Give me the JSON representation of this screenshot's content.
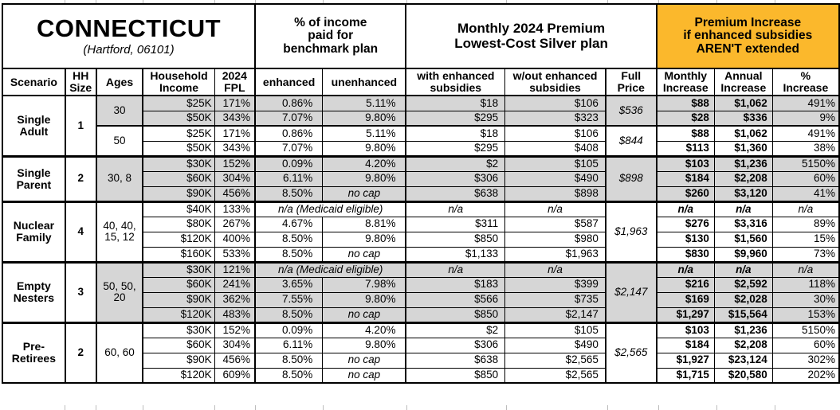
{
  "title": {
    "state": "CONNECTICUT",
    "subtitle": "(Hartford, 06101)"
  },
  "group_headers": {
    "benchmark": "% of income\npaid for\nbenchmark plan",
    "premium": "Monthly 2024 Premium\nLowest-Cost Silver plan",
    "increase": "Premium Increase\nif enhanced subsidies\nAREN'T extended"
  },
  "columns": {
    "scenario": "Scenario",
    "hh_size": "HH\nSize",
    "ages": "Ages",
    "income": "Household\nIncome",
    "fpl": "2024\nFPL",
    "enhanced": "enhanced",
    "unenhanced": "unenhanced",
    "with_sub": "with enhanced\nsubsidies",
    "wout_sub": "w/out enhanced\nsubsidies",
    "full_price": "Full\nPrice",
    "monthly_inc": "Monthly\nIncrease",
    "annual_inc": "Annual\nIncrease",
    "pct_inc": "%\nIncrease"
  },
  "colors": {
    "accent": "#FBB82C",
    "row_shade": "#D6D6D6"
  },
  "na_text": "n/a",
  "medicaid_text": "n/a (Medicaid eligible)",
  "no_cap_text": "no cap",
  "scenarios": [
    {
      "name": "Single\nAdult",
      "hh_size": "1",
      "subgroups": [
        {
          "ages": "30",
          "shaded": true,
          "full_price": "$536",
          "rows": [
            {
              "income": "$25K",
              "fpl": "171%",
              "enhanced": "0.86%",
              "unenhanced": "5.11%",
              "with_sub": "$18",
              "wout_sub": "$106",
              "monthly": "$88",
              "annual": "$1,062",
              "pct": "491%"
            },
            {
              "income": "$50K",
              "fpl": "343%",
              "enhanced": "7.07%",
              "unenhanced": "9.80%",
              "with_sub": "$295",
              "wout_sub": "$323",
              "monthly": "$28",
              "annual": "$336",
              "pct": "9%"
            }
          ]
        },
        {
          "ages": "50",
          "shaded": false,
          "full_price": "$844",
          "rows": [
            {
              "income": "$25K",
              "fpl": "171%",
              "enhanced": "0.86%",
              "unenhanced": "5.11%",
              "with_sub": "$18",
              "wout_sub": "$106",
              "monthly": "$88",
              "annual": "$1,062",
              "pct": "491%"
            },
            {
              "income": "$50K",
              "fpl": "343%",
              "enhanced": "7.07%",
              "unenhanced": "9.80%",
              "with_sub": "$295",
              "wout_sub": "$408",
              "monthly": "$113",
              "annual": "$1,360",
              "pct": "38%"
            }
          ]
        }
      ]
    },
    {
      "name": "Single\nParent",
      "hh_size": "2",
      "subgroups": [
        {
          "ages": "30, 8",
          "shaded": true,
          "full_price": "$898",
          "rows": [
            {
              "income": "$30K",
              "fpl": "152%",
              "enhanced": "0.09%",
              "unenhanced": "4.20%",
              "with_sub": "$2",
              "wout_sub": "$105",
              "monthly": "$103",
              "annual": "$1,236",
              "pct": "5150%"
            },
            {
              "income": "$60K",
              "fpl": "304%",
              "enhanced": "6.11%",
              "unenhanced": "9.80%",
              "with_sub": "$306",
              "wout_sub": "$490",
              "monthly": "$184",
              "annual": "$2,208",
              "pct": "60%"
            },
            {
              "income": "$90K",
              "fpl": "456%",
              "enhanced": "8.50%",
              "unenhanced": "no cap",
              "no_cap": true,
              "with_sub": "$638",
              "wout_sub": "$898",
              "monthly": "$260",
              "annual": "$3,120",
              "pct": "41%"
            }
          ]
        }
      ]
    },
    {
      "name": "Nuclear\nFamily",
      "hh_size": "4",
      "subgroups": [
        {
          "ages": "40, 40,\n15, 12",
          "shaded": false,
          "full_price": "$1,963",
          "rows": [
            {
              "income": "$40K",
              "fpl": "133%",
              "medicaid": true
            },
            {
              "income": "$80K",
              "fpl": "267%",
              "enhanced": "4.67%",
              "unenhanced": "8.81%",
              "with_sub": "$311",
              "wout_sub": "$587",
              "monthly": "$276",
              "annual": "$3,316",
              "pct": "89%"
            },
            {
              "income": "$120K",
              "fpl": "400%",
              "enhanced": "8.50%",
              "unenhanced": "9.80%",
              "with_sub": "$850",
              "wout_sub": "$980",
              "monthly": "$130",
              "annual": "$1,560",
              "pct": "15%"
            },
            {
              "income": "$160K",
              "fpl": "533%",
              "enhanced": "8.50%",
              "unenhanced": "no cap",
              "no_cap": true,
              "with_sub": "$1,133",
              "wout_sub": "$1,963",
              "monthly": "$830",
              "annual": "$9,960",
              "pct": "73%"
            }
          ]
        }
      ]
    },
    {
      "name": "Empty\nNesters",
      "hh_size": "3",
      "subgroups": [
        {
          "ages": "50, 50,\n20",
          "shaded": true,
          "full_price": "$2,147",
          "rows": [
            {
              "income": "$30K",
              "fpl": "121%",
              "medicaid": true
            },
            {
              "income": "$60K",
              "fpl": "241%",
              "enhanced": "3.65%",
              "unenhanced": "7.98%",
              "with_sub": "$183",
              "wout_sub": "$399",
              "monthly": "$216",
              "annual": "$2,592",
              "pct": "118%"
            },
            {
              "income": "$90K",
              "fpl": "362%",
              "enhanced": "7.55%",
              "unenhanced": "9.80%",
              "with_sub": "$566",
              "wout_sub": "$735",
              "monthly": "$169",
              "annual": "$2,028",
              "pct": "30%"
            },
            {
              "income": "$120K",
              "fpl": "483%",
              "enhanced": "8.50%",
              "unenhanced": "no cap",
              "no_cap": true,
              "with_sub": "$850",
              "wout_sub": "$2,147",
              "monthly": "$1,297",
              "annual": "$15,564",
              "pct": "153%"
            }
          ]
        }
      ]
    },
    {
      "name": "Pre-\nRetirees",
      "hh_size": "2",
      "subgroups": [
        {
          "ages": "60, 60",
          "shaded": false,
          "full_price": "$2,565",
          "rows": [
            {
              "income": "$30K",
              "fpl": "152%",
              "enhanced": "0.09%",
              "unenhanced": "4.20%",
              "with_sub": "$2",
              "wout_sub": "$105",
              "monthly": "$103",
              "annual": "$1,236",
              "pct": "5150%"
            },
            {
              "income": "$60K",
              "fpl": "304%",
              "enhanced": "6.11%",
              "unenhanced": "9.80%",
              "with_sub": "$306",
              "wout_sub": "$490",
              "monthly": "$184",
              "annual": "$2,208",
              "pct": "60%"
            },
            {
              "income": "$90K",
              "fpl": "456%",
              "enhanced": "8.50%",
              "unenhanced": "no cap",
              "no_cap": true,
              "with_sub": "$638",
              "wout_sub": "$2,565",
              "monthly": "$1,927",
              "annual": "$23,124",
              "pct": "302%"
            },
            {
              "income": "$120K",
              "fpl": "609%",
              "enhanced": "8.50%",
              "unenhanced": "no cap",
              "no_cap": true,
              "with_sub": "$850",
              "wout_sub": "$2,565",
              "monthly": "$1,715",
              "annual": "$20,580",
              "pct": "202%"
            }
          ]
        }
      ]
    }
  ]
}
